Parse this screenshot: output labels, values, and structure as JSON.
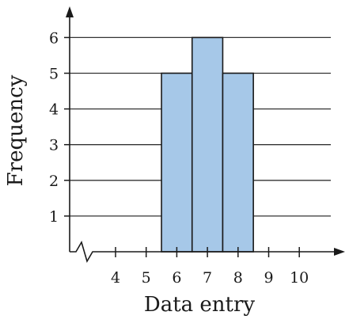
{
  "chart_data": {
    "type": "bar",
    "categories": [
      "6",
      "7",
      "8"
    ],
    "x_values": [
      6,
      7,
      8
    ],
    "values": [
      5,
      6,
      5
    ],
    "xlabel": "Data entry",
    "ylabel": "Frequency",
    "x_ticks": [
      "4",
      "5",
      "6",
      "7",
      "8",
      "9",
      "10"
    ],
    "x_tick_values": [
      4,
      5,
      6,
      7,
      8,
      9,
      10
    ],
    "y_ticks": [
      "1",
      "2",
      "3",
      "4",
      "5",
      "6"
    ],
    "y_tick_values": [
      1,
      2,
      3,
      4,
      5,
      6
    ],
    "ylim": [
      0,
      7
    ],
    "xlim": [
      3,
      11
    ],
    "grid": "horizontal",
    "axis_break": true,
    "bar_color": "#a6c8e8",
    "bar_edge_color": "#1a1a1a",
    "grid_color": "#333333"
  }
}
